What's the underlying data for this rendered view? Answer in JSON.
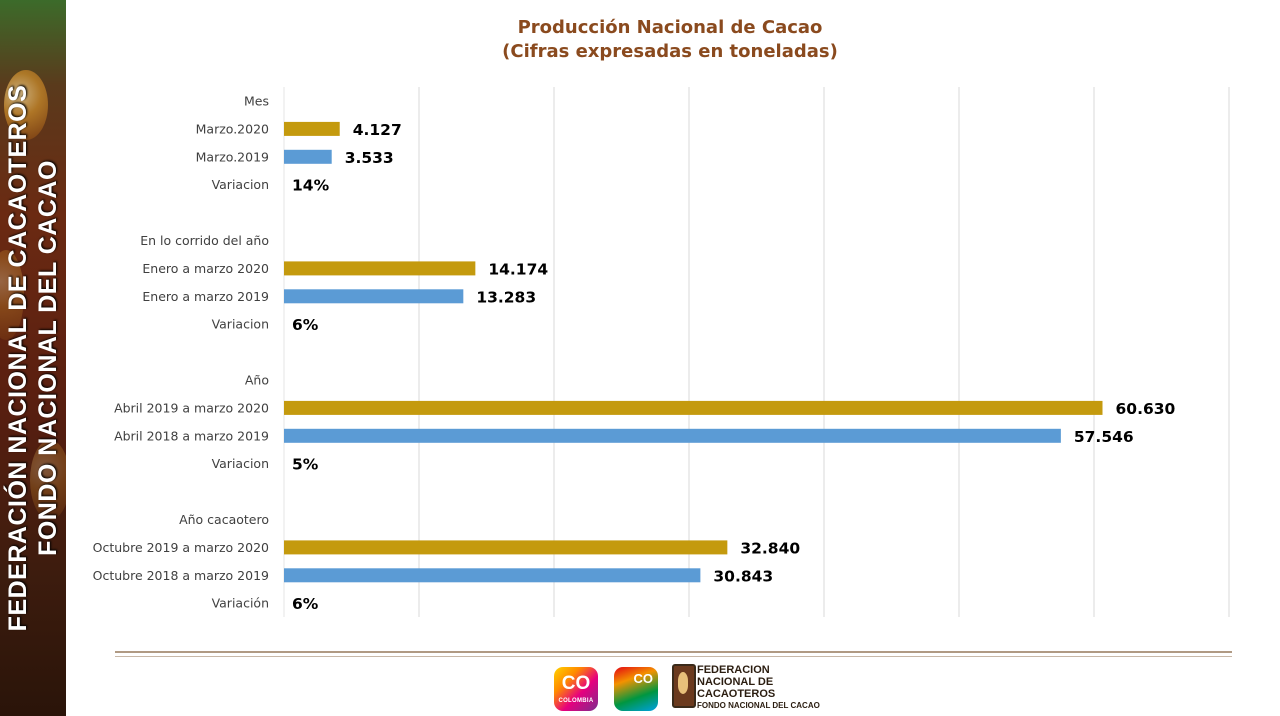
{
  "sidebar": {
    "line1": "FEDERACIÓN NACIONAL DE CACAOTEROS",
    "line2": "FONDO NACIONAL DEL CACAO"
  },
  "chart_data": {
    "type": "bar",
    "orientation": "horizontal",
    "title": "Producción Nacional de Cacao",
    "subtitle": "(Cifras expresadas en toneladas)",
    "xlim": [
      0,
      70000
    ],
    "grid": true,
    "legend": "none",
    "colors": {
      "current": "#c49a0e",
      "previous": "#5b9bd5"
    },
    "rows": [
      {
        "label": "Mes",
        "kind": "header"
      },
      {
        "label": "Marzo.2020",
        "kind": "current",
        "value": 4127,
        "display": "4.127"
      },
      {
        "label": "Marzo.2019",
        "kind": "previous",
        "value": 3533,
        "display": "3.533"
      },
      {
        "label": "Variacion",
        "kind": "variation",
        "display": "14%"
      },
      {
        "label": "",
        "kind": "spacer"
      },
      {
        "label": "En lo corrido del año",
        "kind": "header"
      },
      {
        "label": "Enero a marzo 2020",
        "kind": "current",
        "value": 14174,
        "display": "14.174"
      },
      {
        "label": "Enero a marzo 2019",
        "kind": "previous",
        "value": 13283,
        "display": "13.283"
      },
      {
        "label": "Variacion",
        "kind": "variation",
        "display": "6%"
      },
      {
        "label": "",
        "kind": "spacer"
      },
      {
        "label": "Año",
        "kind": "header"
      },
      {
        "label": "Abril 2019 a marzo 2020",
        "kind": "current",
        "value": 60630,
        "display": "60.630"
      },
      {
        "label": "Abril 2018 a marzo 2019",
        "kind": "previous",
        "value": 57546,
        "display": "57.546"
      },
      {
        "label": "Variacion",
        "kind": "variation",
        "display": "5%"
      },
      {
        "label": "",
        "kind": "spacer"
      },
      {
        "label": "Año cacaotero",
        "kind": "header"
      },
      {
        "label": "Octubre 2019 a marzo 2020",
        "kind": "current",
        "value": 32840,
        "display": "32.840"
      },
      {
        "label": "Octubre 2018 a marzo 2019",
        "kind": "previous",
        "value": 30843,
        "display": "30.843"
      },
      {
        "label": "Variación",
        "kind": "variation",
        "display": "6%"
      }
    ]
  },
  "footer": {
    "logo_co_text": "CO",
    "logo_co_sub": "COLOMBIA",
    "logo_co2_text": "CO",
    "logo_fed_line1": "FEDERACION",
    "logo_fed_line2": "NACIONAL DE",
    "logo_fed_line3": "CACAOTEROS",
    "logo_fed_line4": "FONDO NACIONAL DEL CACAO"
  }
}
